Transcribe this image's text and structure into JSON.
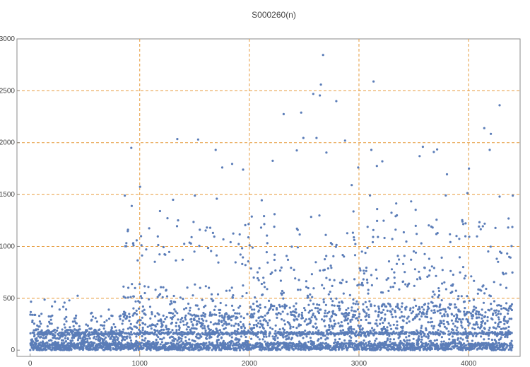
{
  "chart_data": {
    "type": "scatter",
    "title": "S000260(n)",
    "xlabel": "",
    "ylabel": "",
    "xlim": [
      -120,
      4470
    ],
    "ylim": [
      -60,
      3000
    ],
    "xticks": [
      0,
      1000,
      2000,
      3000,
      4000
    ],
    "yticks": [
      0,
      500,
      1000,
      1500,
      2000,
      2500,
      3000
    ],
    "xticklabels": [
      "0",
      "1000",
      "2000",
      "3000",
      "4000"
    ],
    "yticklabels": [
      "0",
      "500",
      "1000",
      "1500",
      "2000",
      "2500",
      "3000"
    ],
    "gridlines_x": [
      1000,
      2000,
      3000,
      4000
    ],
    "gridlines_y": [
      500,
      1000,
      1500,
      2000,
      2500
    ],
    "grid": "dashed",
    "point_color": "#5b7db8",
    "grid_color": "#e69a3a",
    "n_points": 4400,
    "series": [
      {
        "points": [
          [
            864,
            1490
          ],
          [
            923,
            1950
          ],
          [
            1003,
            1575
          ],
          [
            1343,
            2035
          ],
          [
            1533,
            2030
          ],
          [
            1503,
            1490
          ],
          [
            1643,
            1180
          ],
          [
            1693,
            1930
          ],
          [
            1703,
            1460
          ],
          [
            1753,
            1760
          ],
          [
            1843,
            1795
          ],
          [
            1943,
            1740
          ],
          [
            1963,
            1205
          ],
          [
            1993,
            1215
          ],
          [
            2113,
            1445
          ],
          [
            2213,
            1825
          ],
          [
            2313,
            2275
          ],
          [
            2433,
            1925
          ],
          [
            2473,
            2290
          ],
          [
            2493,
            2045
          ],
          [
            2583,
            2470
          ],
          [
            2613,
            2045
          ],
          [
            2643,
            2455
          ],
          [
            2653,
            2560
          ],
          [
            2673,
            2845
          ],
          [
            2703,
            1905
          ],
          [
            2793,
            2400
          ],
          [
            2873,
            2020
          ],
          [
            2993,
            1760
          ],
          [
            3133,
            2590
          ],
          [
            3113,
            1930
          ],
          [
            3163,
            1775
          ],
          [
            3213,
            1820
          ],
          [
            3553,
            1870
          ],
          [
            3583,
            1960
          ],
          [
            3683,
            1910
          ],
          [
            3713,
            1935
          ],
          [
            3803,
            1695
          ],
          [
            4003,
            1750
          ],
          [
            4143,
            2140
          ],
          [
            4203,
            2085
          ],
          [
            4283,
            2360
          ],
          [
            4193,
            1930
          ],
          [
            4283,
            1480
          ],
          [
            4403,
            1490
          ]
        ]
      }
    ]
  }
}
